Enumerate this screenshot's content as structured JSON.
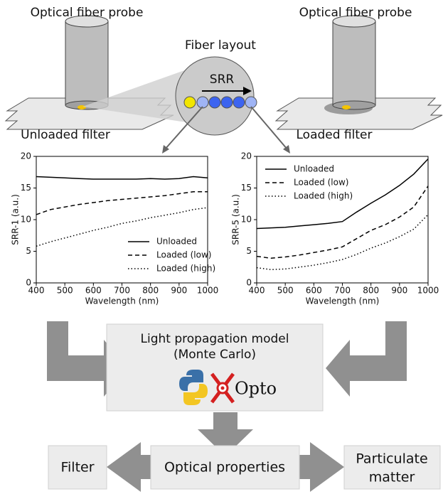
{
  "diagram": {
    "probe_left": "Optical fiber probe",
    "probe_right": "Optical fiber probe",
    "fiber_layout": "Fiber layout",
    "srr": "SRR",
    "unloaded_filter": "Unloaded filter",
    "loaded_filter": "Loaded filter",
    "model_line1": "Light propagation model",
    "model_line2": "(Monte Carlo)",
    "opto": "Opto",
    "optical_properties": "Optical properties",
    "filter": "Filter",
    "pm_line1": "Particulate",
    "pm_line2": "matter"
  },
  "chart_data": [
    {
      "type": "line",
      "ylabel": "SRR-1 (a.u.)",
      "xlabel": "Wavelength (nm)",
      "x": [
        400,
        450,
        500,
        550,
        600,
        650,
        700,
        750,
        800,
        850,
        900,
        950,
        1000
      ],
      "xlim": [
        400,
        1000
      ],
      "xticks": [
        400,
        500,
        600,
        700,
        800,
        900,
        1000
      ],
      "ylim": [
        0,
        20
      ],
      "yticks": [
        0,
        5,
        10,
        15,
        20
      ],
      "legend": "lower right",
      "series": [
        {
          "name": "Unloaded",
          "color": "#000000",
          "linestyle": "solid",
          "values": [
            16.8,
            16.7,
            16.6,
            16.5,
            16.4,
            16.4,
            16.4,
            16.4,
            16.5,
            16.4,
            16.5,
            16.8,
            16.6
          ]
        },
        {
          "name": "Loaded (low)",
          "color": "#000000",
          "linestyle": "dashed",
          "values": [
            10.8,
            11.6,
            12.0,
            12.4,
            12.7,
            13.0,
            13.2,
            13.4,
            13.6,
            13.8,
            14.1,
            14.4,
            14.4
          ]
        },
        {
          "name": "Loaded (high)",
          "color": "#000000",
          "linestyle": "dotted",
          "values": [
            5.8,
            6.5,
            7.1,
            7.7,
            8.3,
            8.8,
            9.4,
            9.8,
            10.3,
            10.7,
            11.1,
            11.6,
            11.9
          ]
        }
      ]
    },
    {
      "type": "line",
      "ylabel": "SRR-5 (a.u.)",
      "xlabel": "Wavelength (nm)",
      "x": [
        400,
        450,
        500,
        550,
        600,
        650,
        700,
        750,
        800,
        850,
        900,
        950,
        1000
      ],
      "xlim": [
        400,
        1000
      ],
      "xticks": [
        400,
        500,
        600,
        700,
        800,
        900,
        1000
      ],
      "ylim": [
        0,
        20
      ],
      "yticks": [
        0,
        5,
        10,
        15,
        20
      ],
      "legend": "upper left",
      "series": [
        {
          "name": "Unloaded",
          "color": "#000000",
          "linestyle": "solid",
          "values": [
            8.6,
            8.7,
            8.8,
            9.0,
            9.2,
            9.4,
            9.7,
            11.2,
            12.6,
            13.9,
            15.4,
            17.2,
            19.6
          ]
        },
        {
          "name": "Loaded (low)",
          "color": "#000000",
          "linestyle": "dashed",
          "values": [
            4.2,
            3.9,
            4.1,
            4.4,
            4.8,
            5.2,
            5.7,
            7.0,
            8.3,
            9.2,
            10.4,
            12.0,
            15.3
          ]
        },
        {
          "name": "Loaded (high)",
          "color": "#000000",
          "linestyle": "dotted",
          "values": [
            2.4,
            2.1,
            2.2,
            2.5,
            2.8,
            3.2,
            3.7,
            4.5,
            5.5,
            6.3,
            7.3,
            8.5,
            10.8
          ]
        }
      ]
    }
  ]
}
